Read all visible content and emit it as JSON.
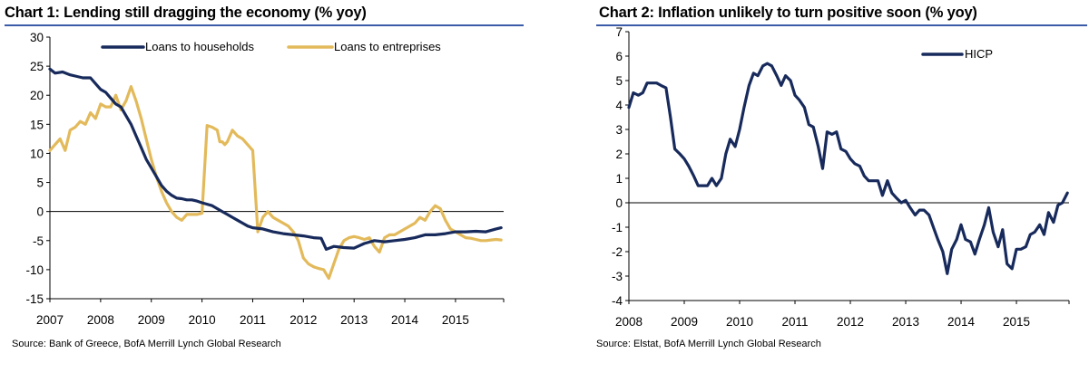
{
  "chart_data": [
    {
      "type": "line",
      "title": "Chart 1: Lending still dragging the economy (% yoy)",
      "source": "Source: Bank of Greece, BofA Merrill Lynch Global Research",
      "xlabel": "",
      "ylabel": "",
      "ylim": [
        -15,
        30
      ],
      "yticks": [
        "30",
        "25",
        "20",
        "15",
        "10",
        "5",
        "0",
        "-5",
        "-10",
        "-15"
      ],
      "ytick_values": [
        30,
        25,
        20,
        15,
        10,
        5,
        0,
        -5,
        -10,
        -15
      ],
      "xlim": [
        2007,
        2015.95
      ],
      "xticks": [
        "2007",
        "2008",
        "2009",
        "2010",
        "2011",
        "2012",
        "2013",
        "2014",
        "2015"
      ],
      "xtick_values": [
        2007,
        2008,
        2009,
        2010,
        2011,
        2012,
        2013,
        2014,
        2015
      ],
      "legend_position": "top",
      "series": [
        {
          "name": "Loans to households",
          "color": "#172a5b",
          "x": [
            2007.0,
            2007.1,
            2007.25,
            2007.4,
            2007.5,
            2007.65,
            2007.8,
            2007.9,
            2008.0,
            2008.1,
            2008.2,
            2008.3,
            2008.4,
            2008.5,
            2008.6,
            2008.7,
            2008.8,
            2008.9,
            2009.0,
            2009.1,
            2009.2,
            2009.3,
            2009.4,
            2009.5,
            2009.6,
            2009.7,
            2009.8,
            2009.9,
            2010.0,
            2010.2,
            2010.4,
            2010.5,
            2010.6,
            2010.7,
            2010.8,
            2010.9,
            2011.0,
            2011.2,
            2011.4,
            2011.6,
            2011.8,
            2012.0,
            2012.2,
            2012.35,
            2012.45,
            2012.6,
            2012.8,
            2013.0,
            2013.2,
            2013.4,
            2013.6,
            2013.8,
            2014.0,
            2014.2,
            2014.4,
            2014.6,
            2014.8,
            2015.0,
            2015.2,
            2015.4,
            2015.6,
            2015.8,
            2015.9
          ],
          "values": [
            24.5,
            23.8,
            24.0,
            23.5,
            23.3,
            23.0,
            23.0,
            22.0,
            21.0,
            20.5,
            19.5,
            18.5,
            18.0,
            16.5,
            15.0,
            13.0,
            11.0,
            9.0,
            7.5,
            6.0,
            4.5,
            3.5,
            2.8,
            2.3,
            2.2,
            2.0,
            2.0,
            1.8,
            1.5,
            1.0,
            0.0,
            -0.5,
            -1.0,
            -1.5,
            -2.0,
            -2.5,
            -2.8,
            -3.0,
            -3.5,
            -3.8,
            -4.0,
            -4.2,
            -4.5,
            -4.6,
            -6.5,
            -6.0,
            -6.2,
            -6.3,
            -5.5,
            -5.0,
            -5.2,
            -5.0,
            -4.8,
            -4.5,
            -4.0,
            -4.0,
            -3.8,
            -3.5,
            -3.5,
            -3.4,
            -3.5,
            -3.0,
            -2.8
          ]
        },
        {
          "name": "Loans to entreprises",
          "color": "#e3ba5b",
          "x": [
            2007.0,
            2007.1,
            2007.2,
            2007.3,
            2007.4,
            2007.5,
            2007.6,
            2007.7,
            2007.8,
            2007.9,
            2008.0,
            2008.1,
            2008.2,
            2008.3,
            2008.4,
            2008.5,
            2008.6,
            2008.7,
            2008.8,
            2008.9,
            2009.0,
            2009.1,
            2009.2,
            2009.3,
            2009.4,
            2009.5,
            2009.6,
            2009.7,
            2009.8,
            2009.9,
            2010.0,
            2010.1,
            2010.2,
            2010.3,
            2010.35,
            2010.4,
            2010.45,
            2010.5,
            2010.6,
            2010.7,
            2010.8,
            2010.9,
            2011.0,
            2011.1,
            2011.2,
            2011.25,
            2011.3,
            2011.4,
            2011.5,
            2011.6,
            2011.7,
            2011.8,
            2011.9,
            2012.0,
            2012.1,
            2012.2,
            2012.3,
            2012.4,
            2012.5,
            2012.6,
            2012.7,
            2012.8,
            2012.9,
            2013.0,
            2013.1,
            2013.2,
            2013.3,
            2013.4,
            2013.5,
            2013.6,
            2013.7,
            2013.8,
            2013.9,
            2014.0,
            2014.1,
            2014.2,
            2014.3,
            2014.4,
            2014.5,
            2014.6,
            2014.7,
            2014.8,
            2014.9,
            2015.0,
            2015.1,
            2015.2,
            2015.3,
            2015.4,
            2015.5,
            2015.6,
            2015.7,
            2015.8,
            2015.9
          ],
          "values": [
            10.5,
            11.5,
            12.5,
            10.5,
            14.0,
            14.5,
            15.5,
            15.0,
            17.0,
            16.0,
            18.5,
            18.0,
            18.0,
            20.0,
            17.5,
            19.0,
            21.5,
            19.0,
            16.0,
            12.5,
            9.0,
            6.0,
            3.5,
            1.5,
            0.0,
            -1.0,
            -1.5,
            -0.5,
            -0.5,
            -0.5,
            -0.3,
            14.8,
            14.5,
            14.0,
            12.0,
            12.0,
            11.5,
            12.0,
            14.0,
            13.0,
            12.5,
            11.5,
            10.5,
            -3.5,
            -1.0,
            -0.5,
            0.0,
            -1.0,
            -1.5,
            -2.0,
            -2.5,
            -3.5,
            -5.0,
            -8.0,
            -9.0,
            -9.5,
            -9.8,
            -10.0,
            -11.5,
            -9.0,
            -6.5,
            -5.0,
            -4.5,
            -4.3,
            -4.5,
            -4.8,
            -4.5,
            -6.0,
            -7.0,
            -4.5,
            -4.0,
            -4.0,
            -3.5,
            -3.0,
            -2.5,
            -2.0,
            -1.0,
            -1.5,
            0.0,
            1.0,
            0.5,
            -1.5,
            -3.0,
            -3.5,
            -4.0,
            -4.5,
            -4.6,
            -4.8,
            -5.0,
            -5.0,
            -4.9,
            -4.8,
            -4.9
          ]
        }
      ]
    },
    {
      "type": "line",
      "title": "Chart 2: Inflation unlikely to turn positive soon (% yoy)",
      "source": "Source: Elstat, BofA Merrill Lynch Global Research",
      "xlabel": "",
      "ylabel": "",
      "ylim": [
        -4,
        7
      ],
      "yticks": [
        "7",
        "6",
        "5",
        "4",
        "3",
        "2",
        "1",
        "0",
        "-1",
        "-2",
        "-3",
        "-4"
      ],
      "ytick_values": [
        7,
        6,
        5,
        4,
        3,
        2,
        1,
        0,
        -1,
        -2,
        -3,
        -4
      ],
      "xlim": [
        2008,
        2015.95
      ],
      "xticks": [
        "2008",
        "2009",
        "2010",
        "2011",
        "2012",
        "2013",
        "2014",
        "2015"
      ],
      "xtick_values": [
        2008,
        2009,
        2010,
        2011,
        2012,
        2013,
        2014,
        2015
      ],
      "legend_position": "top-right",
      "series": [
        {
          "name": "HICP",
          "color": "#172a5b",
          "x": [
            2008.0,
            2008.08,
            2008.17,
            2008.25,
            2008.33,
            2008.42,
            2008.5,
            2008.58,
            2008.67,
            2008.75,
            2008.83,
            2008.92,
            2009.0,
            2009.08,
            2009.17,
            2009.25,
            2009.33,
            2009.42,
            2009.5,
            2009.58,
            2009.67,
            2009.75,
            2009.83,
            2009.92,
            2010.0,
            2010.08,
            2010.17,
            2010.25,
            2010.33,
            2010.42,
            2010.5,
            2010.58,
            2010.67,
            2010.75,
            2010.83,
            2010.92,
            2011.0,
            2011.08,
            2011.17,
            2011.25,
            2011.33,
            2011.42,
            2011.5,
            2011.58,
            2011.67,
            2011.75,
            2011.83,
            2011.92,
            2012.0,
            2012.08,
            2012.17,
            2012.25,
            2012.33,
            2012.42,
            2012.5,
            2012.58,
            2012.67,
            2012.75,
            2012.83,
            2012.92,
            2013.0,
            2013.08,
            2013.17,
            2013.25,
            2013.33,
            2013.42,
            2013.5,
            2013.58,
            2013.67,
            2013.75,
            2013.83,
            2013.92,
            2014.0,
            2014.08,
            2014.17,
            2014.25,
            2014.33,
            2014.42,
            2014.5,
            2014.58,
            2014.67,
            2014.75,
            2014.83,
            2014.92,
            2015.0,
            2015.08,
            2015.17,
            2015.25,
            2015.33,
            2015.42,
            2015.5,
            2015.58,
            2015.67,
            2015.75,
            2015.83,
            2015.92
          ],
          "values": [
            3.9,
            4.5,
            4.4,
            4.5,
            4.9,
            4.9,
            4.9,
            4.8,
            4.7,
            3.5,
            2.2,
            2.0,
            1.8,
            1.5,
            1.1,
            0.7,
            0.7,
            0.7,
            1.0,
            0.7,
            1.0,
            2.0,
            2.6,
            2.3,
            3.0,
            3.9,
            4.8,
            5.3,
            5.2,
            5.6,
            5.7,
            5.6,
            5.2,
            4.8,
            5.2,
            5.0,
            4.4,
            4.2,
            3.9,
            3.2,
            3.1,
            2.3,
            1.4,
            2.9,
            2.8,
            2.9,
            2.2,
            2.1,
            1.8,
            1.6,
            1.5,
            1.1,
            0.9,
            0.9,
            0.9,
            0.3,
            0.9,
            0.4,
            0.2,
            0.0,
            0.1,
            -0.2,
            -0.5,
            -0.3,
            -0.3,
            -0.5,
            -1.0,
            -1.5,
            -2.0,
            -2.9,
            -1.9,
            -1.5,
            -0.9,
            -1.5,
            -1.6,
            -2.1,
            -1.5,
            -0.9,
            -0.2,
            -1.2,
            -1.8,
            -1.1,
            -2.5,
            -2.7,
            -1.9,
            -1.9,
            -1.8,
            -1.3,
            -1.2,
            -0.9,
            -1.3,
            -0.4,
            -0.8,
            -0.1,
            0.0,
            0.4
          ]
        }
      ]
    }
  ]
}
